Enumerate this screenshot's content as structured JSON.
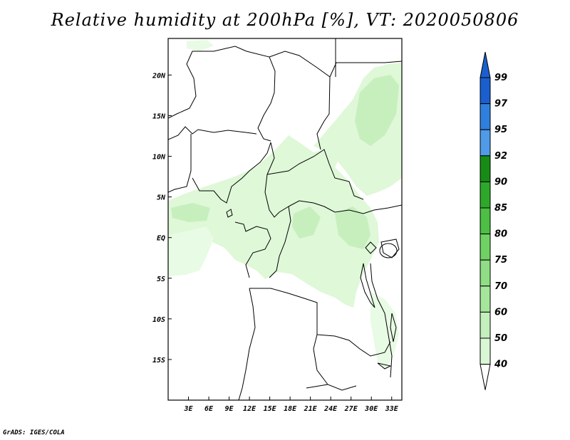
{
  "title": "Relative humidity at 200hPa [%], VT: 2020050806",
  "credit": "GrADS: IGES/COLA",
  "map": {
    "lon_range": [
      0,
      34.5
    ],
    "lat_range": [
      -20,
      24.5
    ],
    "lon_ticks": [
      {
        "value": 3,
        "label": "3E"
      },
      {
        "value": 6,
        "label": "6E"
      },
      {
        "value": 9,
        "label": "9E"
      },
      {
        "value": 12,
        "label": "12E"
      },
      {
        "value": 15,
        "label": "15E"
      },
      {
        "value": 18,
        "label": "18E"
      },
      {
        "value": 21,
        "label": "21E"
      },
      {
        "value": 24,
        "label": "24E"
      },
      {
        "value": 27,
        "label": "27E"
      },
      {
        "value": 30,
        "label": "30E"
      },
      {
        "value": 33,
        "label": "33E"
      }
    ],
    "lat_ticks": [
      {
        "value": 20,
        "label": "20N"
      },
      {
        "value": 15,
        "label": "15N"
      },
      {
        "value": 10,
        "label": "10N"
      },
      {
        "value": 5,
        "label": "5N"
      },
      {
        "value": 0,
        "label": "EQ"
      },
      {
        "value": -5,
        "label": "5S"
      },
      {
        "value": -10,
        "label": "10S"
      },
      {
        "value": -15,
        "label": "15S"
      }
    ]
  },
  "colorbar": {
    "levels": [
      "40",
      "50",
      "60",
      "70",
      "75",
      "80",
      "85",
      "90",
      "92",
      "95",
      "97",
      "99"
    ],
    "colors": [
      "#f0fff0",
      "#d9f7d4",
      "#c3f0bc",
      "#a5e69c",
      "#8fdd84",
      "#6fd163",
      "#4cbf44",
      "#2ea82a",
      "#168c16",
      "#4f9be8",
      "#2f7fdf",
      "#1a5fcf"
    ],
    "top_color": "#1a5fcf",
    "bottom_color": "#ffffff"
  },
  "colors": {
    "light_green": "#dff8d8",
    "mid_green": "#c6efbd",
    "border": "#000000"
  }
}
